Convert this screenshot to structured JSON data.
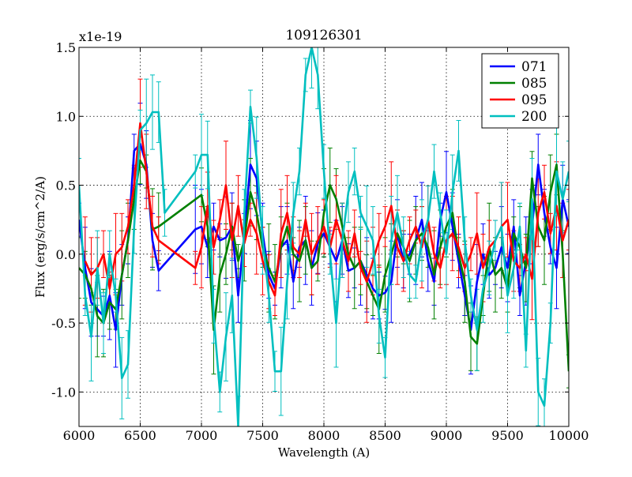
{
  "chart_data": {
    "type": "line",
    "title": "109126301",
    "xlabel": "Wavelength (A)",
    "ylabel": "Flux (erg/s/cm^2/A)",
    "offset_label": "x1e-19",
    "xlim": [
      6000,
      10000
    ],
    "ylim": [
      -1.25,
      1.5
    ],
    "xticks": [
      6000,
      6500,
      7000,
      7500,
      8000,
      8500,
      9000,
      9500,
      10000
    ],
    "xtick_labels": [
      "6000",
      "6500",
      "7000",
      "7500",
      "8000",
      "8500",
      "9000",
      "9500",
      "10000"
    ],
    "yticks": [
      -1.0,
      -0.5,
      0.0,
      0.5,
      1.0,
      1.5
    ],
    "ytick_labels": [
      "-1.0",
      "-0.5",
      "0.0",
      "0.5",
      "1.0",
      "1.5"
    ],
    "grid": true,
    "legend_position": "top-right",
    "series": [
      {
        "name": "071",
        "color": "#0000ff",
        "x": [
          6000,
          6050,
          6100,
          6150,
          6200,
          6250,
          6300,
          6350,
          6400,
          6450,
          6500,
          6550,
          6600,
          6650,
          6950,
          7000,
          7050,
          7100,
          7150,
          7200,
          7250,
          7300,
          7350,
          7400,
          7450,
          7500,
          7550,
          7600,
          7650,
          7700,
          7750,
          7800,
          7850,
          7900,
          7950,
          8000,
          8050,
          8100,
          8150,
          8200,
          8250,
          8300,
          8350,
          8400,
          8450,
          8500,
          8550,
          8600,
          8650,
          8700,
          8750,
          8800,
          8850,
          8900,
          8950,
          9000,
          9050,
          9100,
          9150,
          9200,
          9250,
          9300,
          9350,
          9400,
          9450,
          9500,
          9550,
          9600,
          9650,
          9700,
          9750,
          9800,
          9850,
          9900,
          9950,
          10000
        ],
        "y": [
          0.25,
          -0.1,
          -0.35,
          -0.4,
          -0.45,
          -0.3,
          -0.55,
          -0.15,
          0.1,
          0.75,
          0.8,
          0.65,
          0.1,
          -0.12,
          0.18,
          0.2,
          0.05,
          0.2,
          0.1,
          0.12,
          0.2,
          -0.3,
          0.15,
          0.65,
          0.55,
          0.15,
          -0.15,
          -0.25,
          0.05,
          0.1,
          -0.2,
          0.05,
          0.1,
          -0.1,
          0.08,
          0.15,
          0.05,
          -0.05,
          0.1,
          -0.12,
          -0.1,
          -0.05,
          -0.15,
          -0.25,
          -0.3,
          -0.28,
          -0.2,
          0.15,
          -0.05,
          0.0,
          0.1,
          0.25,
          -0.05,
          -0.2,
          0.25,
          0.45,
          0.2,
          -0.05,
          -0.3,
          -0.55,
          -0.2,
          0.0,
          -0.15,
          -0.1,
          0.05,
          -0.1,
          0.2,
          -0.3,
          -0.05,
          0.2,
          0.65,
          0.3,
          0.05,
          -0.1,
          0.4,
          0.2
        ]
      },
      {
        "name": "085",
        "color": "#008000",
        "x": [
          6000,
          6050,
          6100,
          6150,
          6200,
          6250,
          6300,
          6350,
          6400,
          6450,
          6500,
          6550,
          6600,
          6650,
          7000,
          7050,
          7100,
          7150,
          7200,
          7250,
          7300,
          7350,
          7400,
          7450,
          7500,
          7550,
          7600,
          7650,
          7700,
          7750,
          7800,
          7850,
          7900,
          7950,
          8000,
          8050,
          8100,
          8150,
          8200,
          8250,
          8300,
          8350,
          8400,
          8450,
          8500,
          8550,
          8600,
          8650,
          8700,
          8750,
          8800,
          8850,
          8900,
          8950,
          9000,
          9050,
          9100,
          9150,
          9200,
          9250,
          9300,
          9350,
          9400,
          9450,
          9500,
          9550,
          9600,
          9650,
          9700,
          9750,
          9800,
          9850,
          9900,
          9950,
          10000
        ],
        "y": [
          -0.1,
          -0.15,
          -0.25,
          -0.45,
          -0.5,
          -0.35,
          -0.4,
          -0.15,
          0.1,
          0.4,
          0.68,
          0.6,
          0.18,
          0.2,
          0.43,
          0.2,
          -0.55,
          -0.15,
          0.0,
          0.2,
          -0.05,
          0.1,
          0.45,
          0.3,
          0.05,
          -0.1,
          -0.2,
          0.05,
          0.2,
          0.0,
          -0.05,
          0.1,
          -0.1,
          -0.05,
          0.3,
          0.5,
          0.4,
          0.2,
          0.0,
          -0.1,
          -0.05,
          -0.2,
          -0.3,
          -0.4,
          -0.15,
          0.0,
          0.15,
          0.05,
          -0.05,
          0.1,
          0.15,
          0.05,
          -0.15,
          0.05,
          0.2,
          0.3,
          0.0,
          -0.2,
          -0.6,
          -0.65,
          -0.3,
          0.05,
          -0.15,
          -0.1,
          -0.25,
          0.15,
          0.05,
          -0.1,
          0.55,
          0.2,
          0.1,
          0.45,
          0.65,
          0.0,
          -0.85
        ]
      },
      {
        "name": "095",
        "color": "#ff0000",
        "x": [
          6050,
          6100,
          6150,
          6200,
          6250,
          6300,
          6350,
          6400,
          6450,
          6500,
          6550,
          6600,
          6650,
          6950,
          7000,
          7050,
          7100,
          7150,
          7200,
          7250,
          7300,
          7350,
          7400,
          7450,
          7500,
          7550,
          7600,
          7650,
          7700,
          7750,
          7800,
          7850,
          7900,
          7950,
          8000,
          8050,
          8100,
          8150,
          8200,
          8250,
          8300,
          8350,
          8400,
          8450,
          8500,
          8550,
          8600,
          8650,
          8700,
          8750,
          8800,
          8850,
          8900,
          8950,
          9000,
          9050,
          9100,
          9150,
          9200,
          9250,
          9300,
          9350,
          9400,
          9450,
          9500,
          9550,
          9600,
          9650,
          9700,
          9750,
          9800,
          9850,
          9900,
          9950,
          10000
        ],
        "y": [
          -0.05,
          -0.15,
          -0.1,
          0.0,
          -0.25,
          0.0,
          0.05,
          0.2,
          0.5,
          0.95,
          0.6,
          0.2,
          0.1,
          -0.1,
          0.05,
          0.35,
          0.05,
          0.25,
          0.5,
          0.1,
          0.35,
          0.08,
          0.25,
          0.15,
          -0.05,
          -0.2,
          -0.3,
          0.15,
          0.3,
          0.05,
          0.0,
          0.25,
          0.0,
          0.1,
          0.2,
          0.05,
          0.25,
          0.1,
          -0.05,
          0.15,
          -0.1,
          -0.2,
          -0.05,
          0.1,
          0.2,
          0.35,
          0.05,
          -0.05,
          0.1,
          0.2,
          0.05,
          0.25,
          0.0,
          -0.1,
          0.1,
          0.15,
          0.05,
          -0.1,
          0.0,
          0.15,
          -0.1,
          0.05,
          0.1,
          0.2,
          0.25,
          -0.05,
          -0.1,
          0.0,
          -0.18,
          0.3,
          0.45,
          0.15,
          0.35,
          0.1,
          0.25
        ]
      },
      {
        "name": "200",
        "color": "#00bfbf",
        "x": [
          6000,
          6050,
          6100,
          6150,
          6200,
          6250,
          6300,
          6350,
          6400,
          6450,
          6500,
          6550,
          6600,
          6650,
          6700,
          6950,
          7000,
          7050,
          7100,
          7150,
          7200,
          7250,
          7300,
          7350,
          7400,
          7450,
          7500,
          7550,
          7600,
          7650,
          7700,
          7750,
          7800,
          7850,
          7900,
          7950,
          8000,
          8050,
          8100,
          8150,
          8200,
          8250,
          8300,
          8350,
          8400,
          8450,
          8500,
          8550,
          8600,
          8650,
          8700,
          8750,
          8800,
          8850,
          8900,
          8950,
          9000,
          9050,
          9100,
          9150,
          9200,
          9250,
          9300,
          9350,
          9400,
          9450,
          9500,
          9550,
          9600,
          9650,
          9700,
          9750,
          9800,
          9850,
          9900,
          9950,
          10000
        ],
        "y": [
          0.5,
          -0.3,
          -0.6,
          -0.1,
          -0.5,
          0.0,
          -0.3,
          -0.9,
          -0.8,
          0.2,
          0.9,
          0.95,
          1.03,
          1.03,
          0.3,
          0.6,
          0.72,
          0.72,
          -0.45,
          -1.0,
          -0.6,
          -0.3,
          -1.25,
          0.3,
          1.07,
          0.7,
          0.1,
          -0.3,
          -0.85,
          -0.85,
          -0.2,
          0.3,
          0.6,
          1.3,
          1.5,
          1.3,
          0.6,
          0.0,
          -0.5,
          0.1,
          0.45,
          0.6,
          0.3,
          0.2,
          0.1,
          -0.45,
          -0.75,
          0.1,
          0.3,
          0.05,
          -0.15,
          -0.2,
          0.1,
          0.25,
          0.6,
          0.3,
          0.0,
          0.45,
          0.75,
          0.1,
          -0.3,
          -0.55,
          -0.25,
          -0.1,
          0.1,
          0.2,
          -0.3,
          -0.1,
          0.2,
          -0.7,
          0.4,
          -1.0,
          -1.1,
          -0.5,
          0.6,
          0.4,
          0.6
        ]
      }
    ]
  }
}
